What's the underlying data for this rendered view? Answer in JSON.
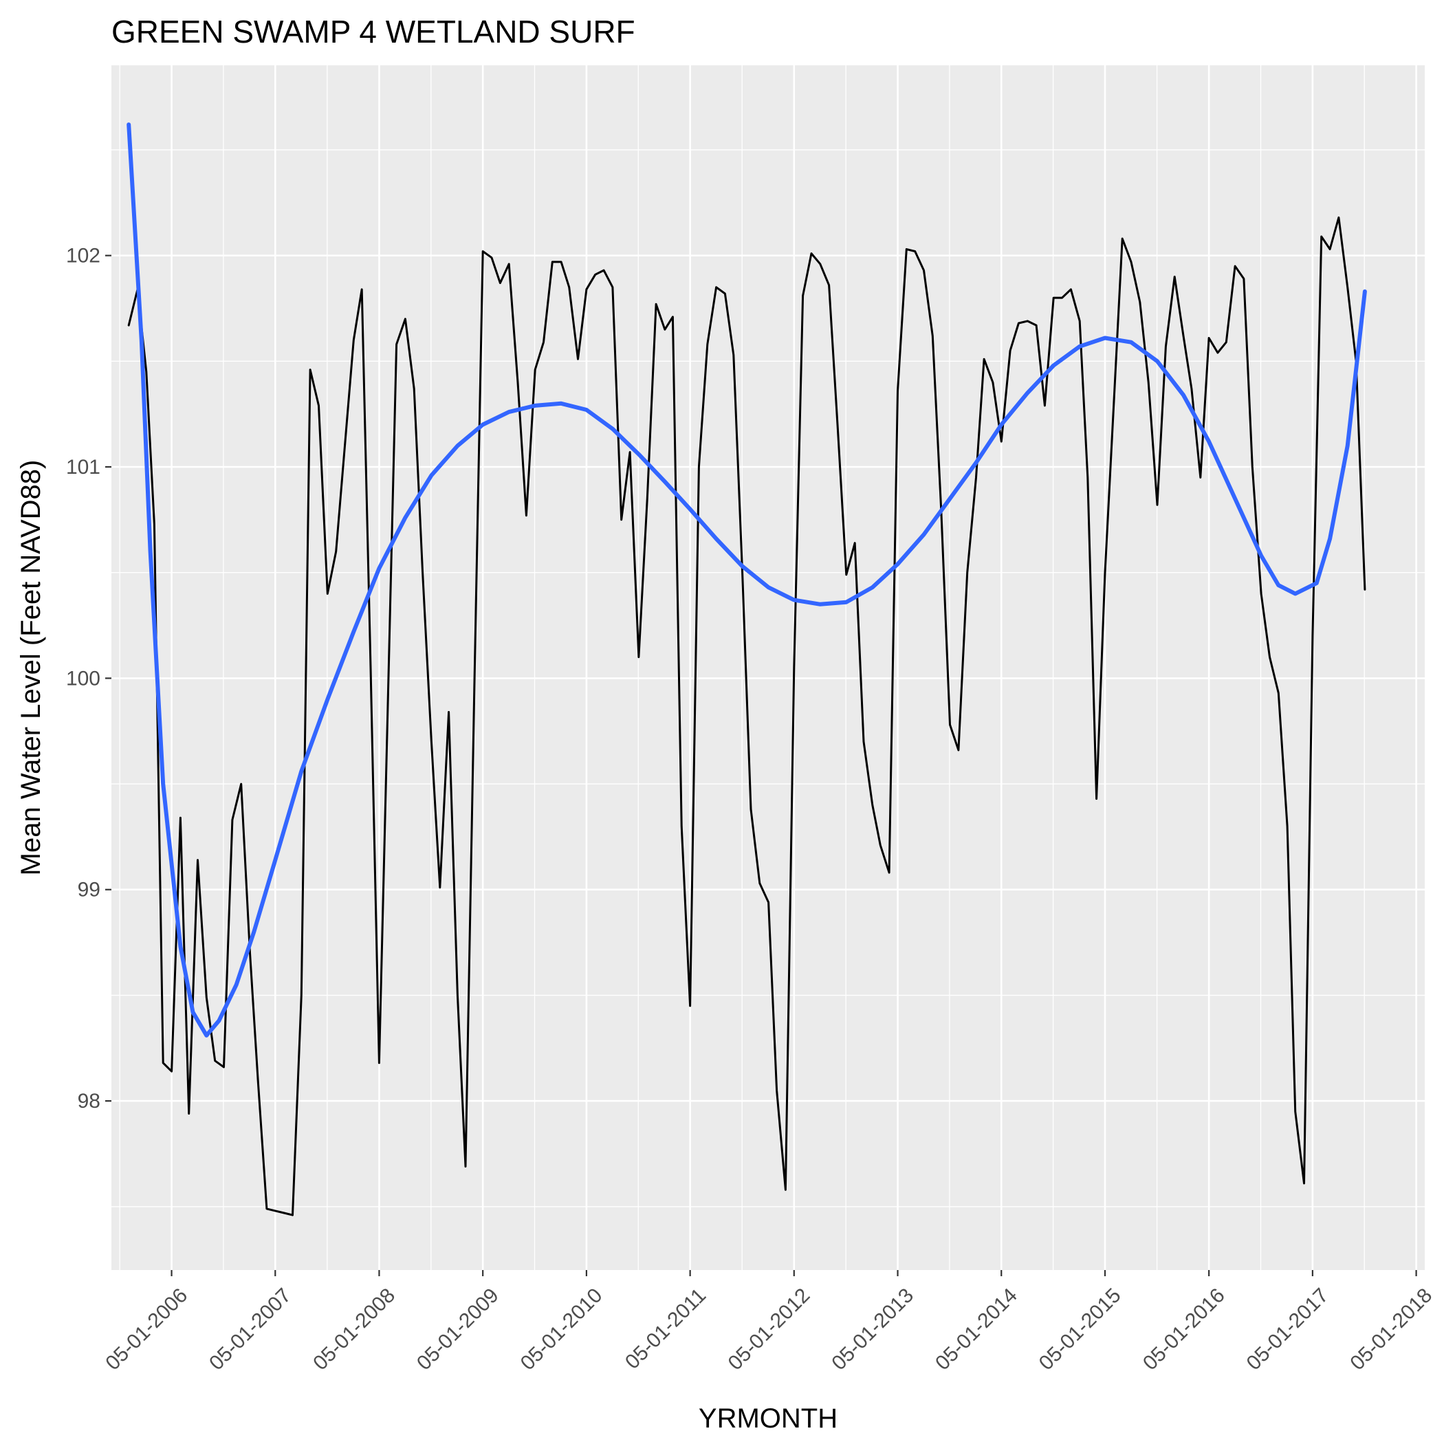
{
  "chart_data": {
    "type": "line",
    "title": "GREEN SWAMP 4 WETLAND SURF",
    "xlabel": "YRMONTH",
    "ylabel": "Mean Water Level (Feet NAVD88)",
    "x_axis": {
      "scale": "date",
      "range": [
        "2005-10-01",
        "2018-05-31"
      ],
      "tick_dates": [
        "2006-05-01",
        "2007-05-01",
        "2008-05-01",
        "2009-05-01",
        "2010-05-01",
        "2011-05-01",
        "2012-05-01",
        "2013-05-01",
        "2014-05-01",
        "2015-05-01",
        "2016-05-01",
        "2017-05-01",
        "2018-05-01"
      ],
      "tick_labels": [
        "05-01-2006",
        "05-01-2007",
        "05-01-2008",
        "05-01-2009",
        "05-01-2010",
        "05-01-2011",
        "05-01-2012",
        "05-01-2013",
        "05-01-2014",
        "05-01-2015",
        "05-01-2016",
        "05-01-2017",
        "05-01-2018"
      ],
      "tick_label_rotation": -45
    },
    "y_axis": {
      "range": [
        97.2,
        102.9
      ],
      "ticks": [
        98,
        99,
        100,
        101,
        102
      ],
      "tick_labels": [
        "98",
        "99",
        "100",
        "101",
        "102"
      ]
    },
    "grid": true,
    "legend": "none",
    "colors": {
      "panel": "#ebebeb",
      "grid": "#ffffff",
      "observed": "#000000",
      "smooth": "#3366ff"
    },
    "series": [
      {
        "kind": "observed",
        "color": "#000000",
        "points": [
          [
            "2005-12-01",
            101.67
          ],
          [
            "2006-01-01",
            101.84
          ],
          [
            "2006-02-01",
            101.45
          ],
          [
            "2006-03-01",
            100.73
          ],
          [
            "2006-04-01",
            98.18
          ],
          [
            "2006-05-01",
            98.14
          ],
          [
            "2006-06-01",
            99.34
          ],
          [
            "2006-07-01",
            97.94
          ],
          [
            "2006-08-01",
            99.14
          ],
          [
            "2006-09-01",
            98.49
          ],
          [
            "2006-10-01",
            98.19
          ],
          [
            "2006-11-01",
            98.16
          ],
          [
            "2006-12-01",
            99.33
          ],
          [
            "2007-01-01",
            99.5
          ],
          [
            "2007-02-01",
            98.7
          ],
          [
            "2007-03-01",
            98.1
          ],
          [
            "2007-04-01",
            97.49
          ],
          [
            "2007-05-01",
            97.48
          ],
          [
            "2007-06-01",
            97.47
          ],
          [
            "2007-07-01",
            97.46
          ],
          [
            "2007-08-01",
            98.5
          ],
          [
            "2007-09-01",
            101.46
          ],
          [
            "2007-10-01",
            101.29
          ],
          [
            "2007-11-01",
            100.4
          ],
          [
            "2007-12-01",
            100.6
          ],
          [
            "2008-01-01",
            101.1
          ],
          [
            "2008-02-01",
            101.6
          ],
          [
            "2008-03-01",
            101.84
          ],
          [
            "2008-04-01",
            100.05
          ],
          [
            "2008-05-01",
            98.18
          ],
          [
            "2008-06-01",
            99.9
          ],
          [
            "2008-07-01",
            101.58
          ],
          [
            "2008-08-01",
            101.7
          ],
          [
            "2008-09-01",
            101.37
          ],
          [
            "2008-10-01",
            100.5
          ],
          [
            "2008-11-01",
            99.7
          ],
          [
            "2008-12-01",
            99.01
          ],
          [
            "2009-01-01",
            99.84
          ],
          [
            "2009-02-01",
            98.5
          ],
          [
            "2009-03-01",
            97.69
          ],
          [
            "2009-04-01",
            99.95
          ],
          [
            "2009-05-01",
            102.02
          ],
          [
            "2009-06-01",
            101.99
          ],
          [
            "2009-07-01",
            101.87
          ],
          [
            "2009-08-01",
            101.96
          ],
          [
            "2009-09-01",
            101.4
          ],
          [
            "2009-10-01",
            100.77
          ],
          [
            "2009-11-01",
            101.46
          ],
          [
            "2009-12-01",
            101.59
          ],
          [
            "2010-01-01",
            101.97
          ],
          [
            "2010-02-01",
            101.97
          ],
          [
            "2010-03-01",
            101.85
          ],
          [
            "2010-04-01",
            101.51
          ],
          [
            "2010-05-01",
            101.84
          ],
          [
            "2010-06-01",
            101.91
          ],
          [
            "2010-07-01",
            101.93
          ],
          [
            "2010-08-01",
            101.85
          ],
          [
            "2010-09-01",
            100.75
          ],
          [
            "2010-10-01",
            101.07
          ],
          [
            "2010-11-01",
            100.1
          ],
          [
            "2010-12-01",
            100.85
          ],
          [
            "2011-01-01",
            101.77
          ],
          [
            "2011-02-01",
            101.65
          ],
          [
            "2011-03-01",
            101.71
          ],
          [
            "2011-04-01",
            99.3
          ],
          [
            "2011-05-01",
            98.45
          ],
          [
            "2011-06-01",
            101.0
          ],
          [
            "2011-07-01",
            101.58
          ],
          [
            "2011-08-01",
            101.85
          ],
          [
            "2011-09-01",
            101.82
          ],
          [
            "2011-10-01",
            101.53
          ],
          [
            "2011-11-01",
            100.5
          ],
          [
            "2011-12-01",
            99.38
          ],
          [
            "2012-01-01",
            99.03
          ],
          [
            "2012-02-01",
            98.94
          ],
          [
            "2012-03-01",
            98.05
          ],
          [
            "2012-04-01",
            97.58
          ],
          [
            "2012-05-01",
            100.05
          ],
          [
            "2012-06-01",
            101.81
          ],
          [
            "2012-07-01",
            102.01
          ],
          [
            "2012-08-01",
            101.96
          ],
          [
            "2012-09-01",
            101.86
          ],
          [
            "2012-10-01",
            101.2
          ],
          [
            "2012-11-01",
            100.49
          ],
          [
            "2012-12-01",
            100.64
          ],
          [
            "2013-01-01",
            99.7
          ],
          [
            "2013-02-01",
            99.4
          ],
          [
            "2013-03-01",
            99.21
          ],
          [
            "2013-04-01",
            99.08
          ],
          [
            "2013-05-01",
            101.36
          ],
          [
            "2013-06-01",
            102.03
          ],
          [
            "2013-07-01",
            102.02
          ],
          [
            "2013-08-01",
            101.93
          ],
          [
            "2013-09-01",
            101.62
          ],
          [
            "2013-10-01",
            100.8
          ],
          [
            "2013-11-01",
            99.78
          ],
          [
            "2013-12-01",
            99.66
          ],
          [
            "2014-01-01",
            100.5
          ],
          [
            "2014-02-01",
            100.95
          ],
          [
            "2014-03-01",
            101.51
          ],
          [
            "2014-04-01",
            101.4
          ],
          [
            "2014-05-01",
            101.12
          ],
          [
            "2014-06-01",
            101.55
          ],
          [
            "2014-07-01",
            101.68
          ],
          [
            "2014-08-01",
            101.69
          ],
          [
            "2014-09-01",
            101.67
          ],
          [
            "2014-10-01",
            101.29
          ],
          [
            "2014-11-01",
            101.8
          ],
          [
            "2014-12-01",
            101.8
          ],
          [
            "2015-01-01",
            101.84
          ],
          [
            "2015-02-01",
            101.69
          ],
          [
            "2015-03-01",
            100.95
          ],
          [
            "2015-04-01",
            99.43
          ],
          [
            "2015-05-01",
            100.5
          ],
          [
            "2015-06-01",
            101.3
          ],
          [
            "2015-07-01",
            102.08
          ],
          [
            "2015-08-01",
            101.97
          ],
          [
            "2015-09-01",
            101.78
          ],
          [
            "2015-10-01",
            101.4
          ],
          [
            "2015-11-01",
            100.82
          ],
          [
            "2015-12-01",
            101.57
          ],
          [
            "2016-01-01",
            101.9
          ],
          [
            "2016-02-01",
            101.62
          ],
          [
            "2016-03-01",
            101.37
          ],
          [
            "2016-04-01",
            100.95
          ],
          [
            "2016-05-01",
            101.61
          ],
          [
            "2016-06-01",
            101.54
          ],
          [
            "2016-07-01",
            101.59
          ],
          [
            "2016-08-01",
            101.95
          ],
          [
            "2016-09-01",
            101.89
          ],
          [
            "2016-10-01",
            101.0
          ],
          [
            "2016-11-01",
            100.4
          ],
          [
            "2016-12-01",
            100.1
          ],
          [
            "2017-01-01",
            99.93
          ],
          [
            "2017-02-01",
            99.3
          ],
          [
            "2017-03-01",
            97.95
          ],
          [
            "2017-04-01",
            97.61
          ],
          [
            "2017-05-01",
            100.2
          ],
          [
            "2017-06-01",
            102.09
          ],
          [
            "2017-07-01",
            102.03
          ],
          [
            "2017-08-01",
            102.18
          ],
          [
            "2017-09-01",
            101.85
          ],
          [
            "2017-10-01",
            101.5
          ],
          [
            "2017-11-01",
            100.42
          ]
        ]
      },
      {
        "kind": "smooth",
        "color": "#3366ff",
        "points": [
          [
            "2005-12-01",
            102.62
          ],
          [
            "2006-01-15",
            101.6
          ],
          [
            "2006-02-15",
            100.6
          ],
          [
            "2006-04-01",
            99.5
          ],
          [
            "2006-06-01",
            98.73
          ],
          [
            "2006-07-15",
            98.42
          ],
          [
            "2006-09-01",
            98.31
          ],
          [
            "2006-10-15",
            98.38
          ],
          [
            "2006-12-15",
            98.55
          ],
          [
            "2007-02-15",
            98.8
          ],
          [
            "2007-05-01",
            99.14
          ],
          [
            "2007-08-01",
            99.56
          ],
          [
            "2007-11-01",
            99.9
          ],
          [
            "2008-02-01",
            100.22
          ],
          [
            "2008-05-01",
            100.52
          ],
          [
            "2008-08-01",
            100.76
          ],
          [
            "2008-11-01",
            100.96
          ],
          [
            "2009-02-01",
            101.1
          ],
          [
            "2009-05-01",
            101.2
          ],
          [
            "2009-08-01",
            101.26
          ],
          [
            "2009-11-01",
            101.29
          ],
          [
            "2010-02-01",
            101.3
          ],
          [
            "2010-05-01",
            101.27
          ],
          [
            "2010-08-01",
            101.18
          ],
          [
            "2010-11-01",
            101.06
          ],
          [
            "2011-02-01",
            100.93
          ],
          [
            "2011-05-01",
            100.8
          ],
          [
            "2011-08-01",
            100.66
          ],
          [
            "2011-11-01",
            100.53
          ],
          [
            "2012-02-01",
            100.43
          ],
          [
            "2012-05-01",
            100.37
          ],
          [
            "2012-08-01",
            100.35
          ],
          [
            "2012-11-01",
            100.36
          ],
          [
            "2013-02-01",
            100.43
          ],
          [
            "2013-05-01",
            100.54
          ],
          [
            "2013-08-01",
            100.68
          ],
          [
            "2013-11-01",
            100.85
          ],
          [
            "2014-02-01",
            101.02
          ],
          [
            "2014-05-01",
            101.2
          ],
          [
            "2014-08-01",
            101.35
          ],
          [
            "2014-11-01",
            101.48
          ],
          [
            "2015-02-01",
            101.57
          ],
          [
            "2015-05-01",
            101.61
          ],
          [
            "2015-08-01",
            101.59
          ],
          [
            "2015-11-01",
            101.5
          ],
          [
            "2016-02-01",
            101.34
          ],
          [
            "2016-05-01",
            101.12
          ],
          [
            "2016-08-01",
            100.85
          ],
          [
            "2016-11-01",
            100.58
          ],
          [
            "2017-01-01",
            100.44
          ],
          [
            "2017-03-01",
            100.4
          ],
          [
            "2017-05-15",
            100.45
          ],
          [
            "2017-07-01",
            100.66
          ],
          [
            "2017-09-01",
            101.1
          ],
          [
            "2017-11-01",
            101.83
          ]
        ]
      }
    ]
  }
}
